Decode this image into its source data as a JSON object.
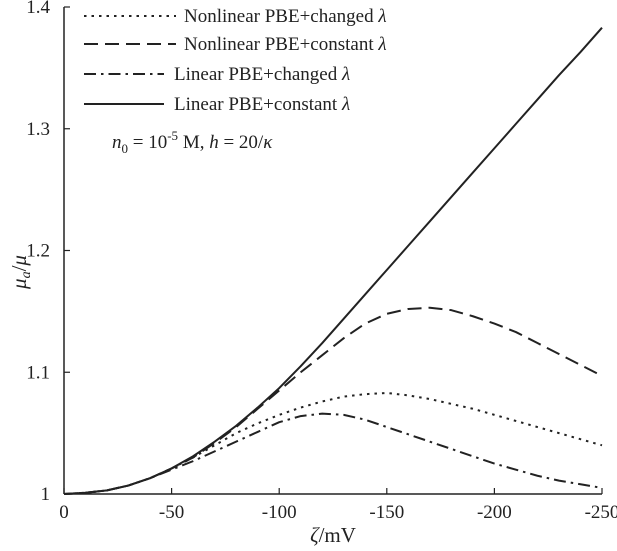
{
  "chart_data": {
    "type": "line",
    "title": "",
    "xlabel": "ζ/mV",
    "ylabel": "μ_a/μ",
    "xlim": [
      0,
      -250
    ],
    "ylim": [
      1.0,
      1.4
    ],
    "grid": false,
    "legend_position": "top-left",
    "x_ticks": [
      0,
      -50,
      -100,
      -150,
      -200,
      -250
    ],
    "x_tick_labels": [
      "0",
      "-50",
      "-100",
      "-150",
      "-200",
      "-250"
    ],
    "y_ticks": [
      1.0,
      1.1,
      1.2,
      1.3,
      1.4
    ],
    "y_tick_labels": [
      "1",
      "1.1",
      "1.2",
      "1.3",
      "1.4"
    ],
    "x": [
      0,
      -10,
      -20,
      -30,
      -40,
      -50,
      -60,
      -70,
      -80,
      -90,
      -100,
      -110,
      -120,
      -130,
      -140,
      -150,
      -160,
      -170,
      -180,
      -190,
      -200,
      -210,
      -220,
      -230,
      -240,
      -250
    ],
    "series": [
      {
        "name": "Nonlinear PBE+changed",
        "dash": "dotted",
        "values": [
          1.0,
          1.001,
          1.003,
          1.007,
          1.013,
          1.021,
          1.03,
          1.04,
          1.05,
          1.058,
          1.065,
          1.071,
          1.076,
          1.08,
          1.082,
          1.083,
          1.081,
          1.078,
          1.074,
          1.07,
          1.065,
          1.06,
          1.055,
          1.05,
          1.045,
          1.04
        ]
      },
      {
        "name": "Nonlinear PBE+constant",
        "dash": "dashed",
        "values": [
          1.0,
          1.001,
          1.003,
          1.007,
          1.013,
          1.021,
          1.03,
          1.042,
          1.055,
          1.07,
          1.085,
          1.1,
          1.114,
          1.128,
          1.14,
          1.148,
          1.152,
          1.153,
          1.151,
          1.146,
          1.14,
          1.133,
          1.124,
          1.115,
          1.106,
          1.097
        ]
      },
      {
        "name": "Linear PBE+changed",
        "dash": "dashdot",
        "values": [
          1.0,
          1.001,
          1.003,
          1.007,
          1.013,
          1.02,
          1.027,
          1.035,
          1.043,
          1.051,
          1.059,
          1.064,
          1.066,
          1.065,
          1.061,
          1.055,
          1.049,
          1.043,
          1.037,
          1.031,
          1.025,
          1.02,
          1.015,
          1.011,
          1.008,
          1.005
        ]
      },
      {
        "name": "Linear PBE+constant",
        "dash": "solid",
        "values": [
          1.0,
          1.001,
          1.003,
          1.007,
          1.013,
          1.021,
          1.031,
          1.043,
          1.056,
          1.071,
          1.087,
          1.105,
          1.124,
          1.144,
          1.164,
          1.184,
          1.204,
          1.224,
          1.244,
          1.264,
          1.284,
          1.304,
          1.324,
          1.344,
          1.363,
          1.383
        ]
      }
    ],
    "legend": {
      "entries": [
        {
          "series": 0,
          "label": "Nonlinear PBE+changed",
          "lambda": "λ"
        },
        {
          "series": 1,
          "label": "Nonlinear PBE+constant",
          "lambda": "λ"
        },
        {
          "series": 2,
          "label": "Linear PBE+changed",
          "lambda": "λ"
        },
        {
          "series": 3,
          "label": "Linear PBE+constant",
          "lambda": "λ"
        }
      ]
    },
    "annotation": {
      "n_sym": "n",
      "n_sub": "0",
      "eq": " = 10",
      "exp": "-5",
      "unit": " M, ",
      "h_sym": "h",
      "h_eq": " = 20/",
      "kappa": "κ"
    },
    "xlabel_parts": {
      "zeta": "ζ",
      "unit": "/mV"
    },
    "ylabel_parts": {
      "mu": "μ",
      "sub": "a",
      "slash": "/",
      "mu2": "μ"
    },
    "colors": {
      "line": "#222222",
      "axis": "#222222",
      "background": "#ffffff"
    }
  }
}
